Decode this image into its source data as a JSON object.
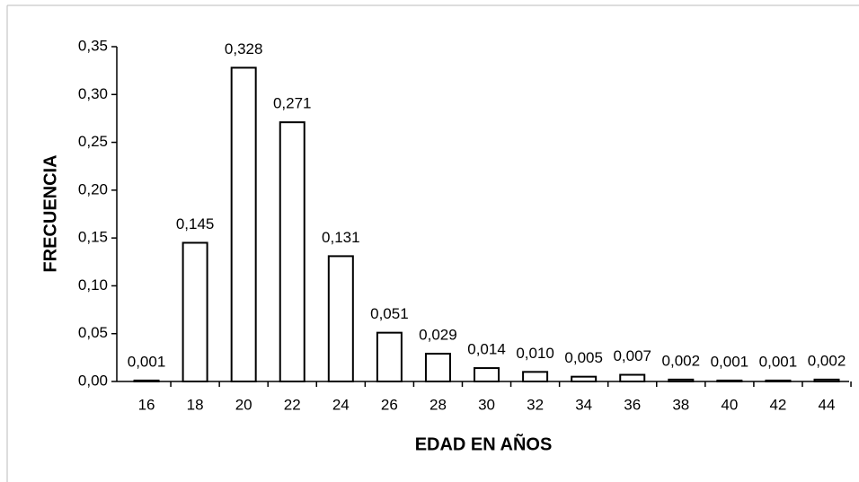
{
  "chart_data": {
    "type": "bar",
    "x_label": "EDAD EN AÑOS",
    "y_label": "FRECUENCIA",
    "categories": [
      "16",
      "18",
      "20",
      "22",
      "24",
      "26",
      "28",
      "30",
      "32",
      "34",
      "36",
      "38",
      "40",
      "42",
      "44"
    ],
    "values": [
      0.001,
      0.145,
      0.328,
      0.271,
      0.131,
      0.051,
      0.029,
      0.014,
      0.01,
      0.005,
      0.007,
      0.002,
      0.001,
      0.001,
      0.002
    ],
    "value_labels": [
      "0,001",
      "0,145",
      "0,328",
      "0,271",
      "0,131",
      "0,051",
      "0,029",
      "0,014",
      "0,010",
      "0,005",
      "0,007",
      "0,002",
      "0,001",
      "0,001",
      "0,002"
    ],
    "color": "#ffffff",
    "ylim": [
      0,
      0.35
    ],
    "yticks": [
      {
        "value": 0,
        "label": "0,00"
      },
      {
        "value": 0.05,
        "label": "0,05"
      },
      {
        "value": 0.1,
        "label": "0,10"
      },
      {
        "value": 0.15,
        "label": "0,15"
      },
      {
        "value": 0.2,
        "label": "0,20"
      },
      {
        "value": 0.25,
        "label": "0,25"
      },
      {
        "value": 0.3,
        "label": "0,30"
      },
      {
        "value": 0.35,
        "label": "0,35"
      }
    ],
    "grid": false
  }
}
